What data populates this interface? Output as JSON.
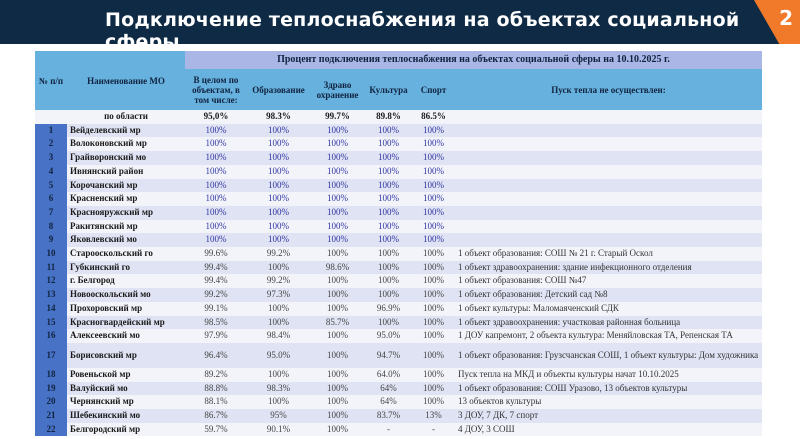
{
  "header": {
    "title": "Подключение теплоснабжения на объектах социальной сферы",
    "page": "2"
  },
  "table": {
    "group_header": "Процент подключения теплоснабжения на объектах социальной сферы на 10.10.2025 г.",
    "columns": [
      "№ п/п",
      "Наименование МО",
      "В целом по объектам, в том числе:",
      "Образование",
      "Здраво охранение",
      "Культура",
      "Спорт",
      "Пуск тепла не осуществлен:"
    ],
    "total": {
      "name": "по области",
      "all": "95,0%",
      "edu": "98.3%",
      "health": "99.7%",
      "culture": "89.8%",
      "sport": "86.5%"
    },
    "rows": [
      [
        "1",
        "Вейделевский мр",
        "100%",
        "100%",
        "100%",
        "100%",
        "100%",
        ""
      ],
      [
        "2",
        "Волоконовский мр",
        "100%",
        "100%",
        "100%",
        "100%",
        "100%",
        ""
      ],
      [
        "3",
        "Грайворонский мо",
        "100%",
        "100%",
        "100%",
        "100%",
        "100%",
        ""
      ],
      [
        "4",
        "Ивнянский район",
        "100%",
        "100%",
        "100%",
        "100%",
        "100%",
        ""
      ],
      [
        "5",
        "Корочанский мр",
        "100%",
        "100%",
        "100%",
        "100%",
        "100%",
        ""
      ],
      [
        "6",
        "Красненский мр",
        "100%",
        "100%",
        "100%",
        "100%",
        "100%",
        ""
      ],
      [
        "7",
        "Краснояружский мр",
        "100%",
        "100%",
        "100%",
        "100%",
        "100%",
        ""
      ],
      [
        "8",
        "Ракитянский мр",
        "100%",
        "100%",
        "100%",
        "100%",
        "100%",
        ""
      ],
      [
        "9",
        "Яковлевский мо",
        "100%",
        "100%",
        "100%",
        "100%",
        "100%",
        ""
      ],
      [
        "10",
        "Старооскольский го",
        "99.6%",
        "99.2%",
        "100%",
        "100%",
        "100%",
        "1 объект образования: СОШ № 21 г. Старый Оскол"
      ],
      [
        "11",
        "Губкинский го",
        "99.4%",
        "100%",
        "98.6%",
        "100%",
        "100%",
        "1 объект здравоохранения: здание инфекционного отделения"
      ],
      [
        "12",
        "г. Белгород",
        "99.4%",
        "99.2%",
        "100%",
        "100%",
        "100%",
        "1 объект образования: СОШ №47"
      ],
      [
        "13",
        "Новооскольский мо",
        "99.2%",
        "97.3%",
        "100%",
        "100%",
        "100%",
        "1 объект образования: Детский сад №8"
      ],
      [
        "14",
        "Прохоровский мр",
        "99.1%",
        "100%",
        "100%",
        "96.9%",
        "100%",
        "1 объект культуры: Маломаяченский СДК"
      ],
      [
        "15",
        "Красногвардейский мр",
        "98.5%",
        "100%",
        "85.7%",
        "100%",
        "100%",
        "1 объект здравоохранения: участковая районная больница"
      ],
      [
        "16",
        "Алексеевский мо",
        "97.9%",
        "98.4%",
        "100%",
        "95.0%",
        "100%",
        "1 ДОУ капремонт, 2 объекта культура: Меняйловская ТА, Репенская ТА"
      ],
      [
        "17",
        "Борисовский мр",
        "96.4%",
        "95.0%",
        "100%",
        "94.7%",
        "100%",
        "1 объект образования: Грузсчанская СОШ, 1 объект культуры: Дом художника"
      ],
      [
        "18",
        "Ровеньской мр",
        "89.2%",
        "100%",
        "100%",
        "64.0%",
        "100%",
        "Пуск тепла на МКД и объекты культуры начат 10.10.2025"
      ],
      [
        "19",
        "Валуйский мо",
        "88.8%",
        "98.3%",
        "100%",
        "64%",
        "100%",
        "1 объект образования: СОШ Уразово, 13 объектов культуры"
      ],
      [
        "20",
        "Чернянский мр",
        "88.1%",
        "100%",
        "100%",
        "64%",
        "100%",
        "13 объектов культуры"
      ],
      [
        "21",
        "Шебекинский мо",
        "86.7%",
        "95%",
        "100%",
        "83.7%",
        "13%",
        "3 ДОУ, 7 ДК, 7 спорт"
      ],
      [
        "22",
        "Белгородский мр",
        "59.7%",
        "90.1%",
        "100%",
        "-",
        "-",
        "4 ДОУ, 3 СОШ"
      ]
    ]
  }
}
